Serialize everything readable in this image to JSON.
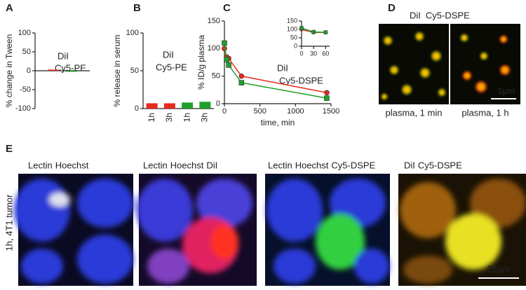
{
  "panels": [
    "A",
    "B",
    "C",
    "D",
    "E"
  ],
  "chart_data": [
    {
      "type": "bar",
      "y_label": "% change in Tween",
      "ylim": [
        -100,
        100
      ],
      "yticks": [
        -100,
        -50,
        0,
        50,
        100
      ],
      "categories": [
        null
      ],
      "series": [
        {
          "name": "DiI",
          "color": "#e8281e",
          "values": [
            3
          ]
        },
        {
          "name": "Cy5-PE",
          "color": "#1fa02a",
          "values": [
            -2
          ]
        }
      ]
    },
    {
      "type": "bar",
      "y_label": "% release in serum",
      "ylim": [
        0,
        100
      ],
      "yticks": [
        0,
        50,
        100
      ],
      "categories": [
        "1h",
        "3h",
        "1h",
        "3h"
      ],
      "series": [
        {
          "name": "DiI",
          "color": "#e8281e",
          "values": [
            7,
            7,
            null,
            null
          ]
        },
        {
          "name": "Cy5-PE",
          "color": "#1fa02a",
          "values": [
            null,
            null,
            8,
            9
          ]
        }
      ]
    },
    {
      "type": "line",
      "x_label": "time, min",
      "y_label": "% ID/g plasma",
      "xlim": [
        0,
        1500
      ],
      "xticks": [
        0,
        500,
        1000,
        1500
      ],
      "ylim": [
        0,
        150
      ],
      "yticks": [
        0,
        50,
        100,
        150
      ],
      "x": [
        0,
        30,
        60,
        240,
        1440
      ],
      "series": [
        {
          "name": "DiI",
          "color": "#e8281e",
          "marker": "circle",
          "values": [
            100,
            85,
            82,
            50,
            20
          ]
        },
        {
          "name": "Cy5-DSPE",
          "color": "#1fa02a",
          "marker": "square",
          "values": [
            110,
            80,
            70,
            38,
            10
          ]
        }
      ]
    },
    {
      "type": "line",
      "xlim": [
        0,
        70
      ],
      "xticks": [
        0,
        30,
        60
      ],
      "ylim": [
        0,
        150
      ],
      "yticks": [
        0,
        50,
        100,
        150
      ],
      "x": [
        0,
        30,
        60
      ],
      "series": [
        {
          "color": "#e8281e",
          "marker": "circle",
          "values": [
            100,
            82,
            82
          ]
        },
        {
          "color": "#1fa02a",
          "marker": "square",
          "values": [
            108,
            85,
            83
          ]
        }
      ]
    }
  ],
  "images": {
    "d_legend": [
      {
        "text": "DiI",
        "color": "#e8281e"
      },
      {
        "text": "Cy5-DSPE",
        "color": "#1fa02a"
      }
    ],
    "d_captions": [
      "plasma, 1 min",
      "plasma, 1 h"
    ],
    "d_scale": "1µm",
    "e_titles": [
      [
        {
          "text": "Lectin",
          "color": "#888888"
        },
        {
          "text": "Hoechst",
          "color": "#2233cc"
        }
      ],
      [
        {
          "text": "Lectin",
          "color": "#888888"
        },
        {
          "text": "Hoechst",
          "color": "#2233cc"
        },
        {
          "text": "DiI",
          "color": "#e8281e"
        }
      ],
      [
        {
          "text": "Lectin",
          "color": "#888888"
        },
        {
          "text": "Hoechst",
          "color": "#2233cc"
        },
        {
          "text": "Cy5-DSPE",
          "color": "#1fa02a"
        }
      ],
      [
        {
          "text": "DiI",
          "color": "#e8281e"
        },
        {
          "text": "Cy5-DSPE",
          "color": "#1fa02a"
        }
      ]
    ],
    "e_side": "1h, 4T1 tumor",
    "e_scale": "25µm"
  }
}
